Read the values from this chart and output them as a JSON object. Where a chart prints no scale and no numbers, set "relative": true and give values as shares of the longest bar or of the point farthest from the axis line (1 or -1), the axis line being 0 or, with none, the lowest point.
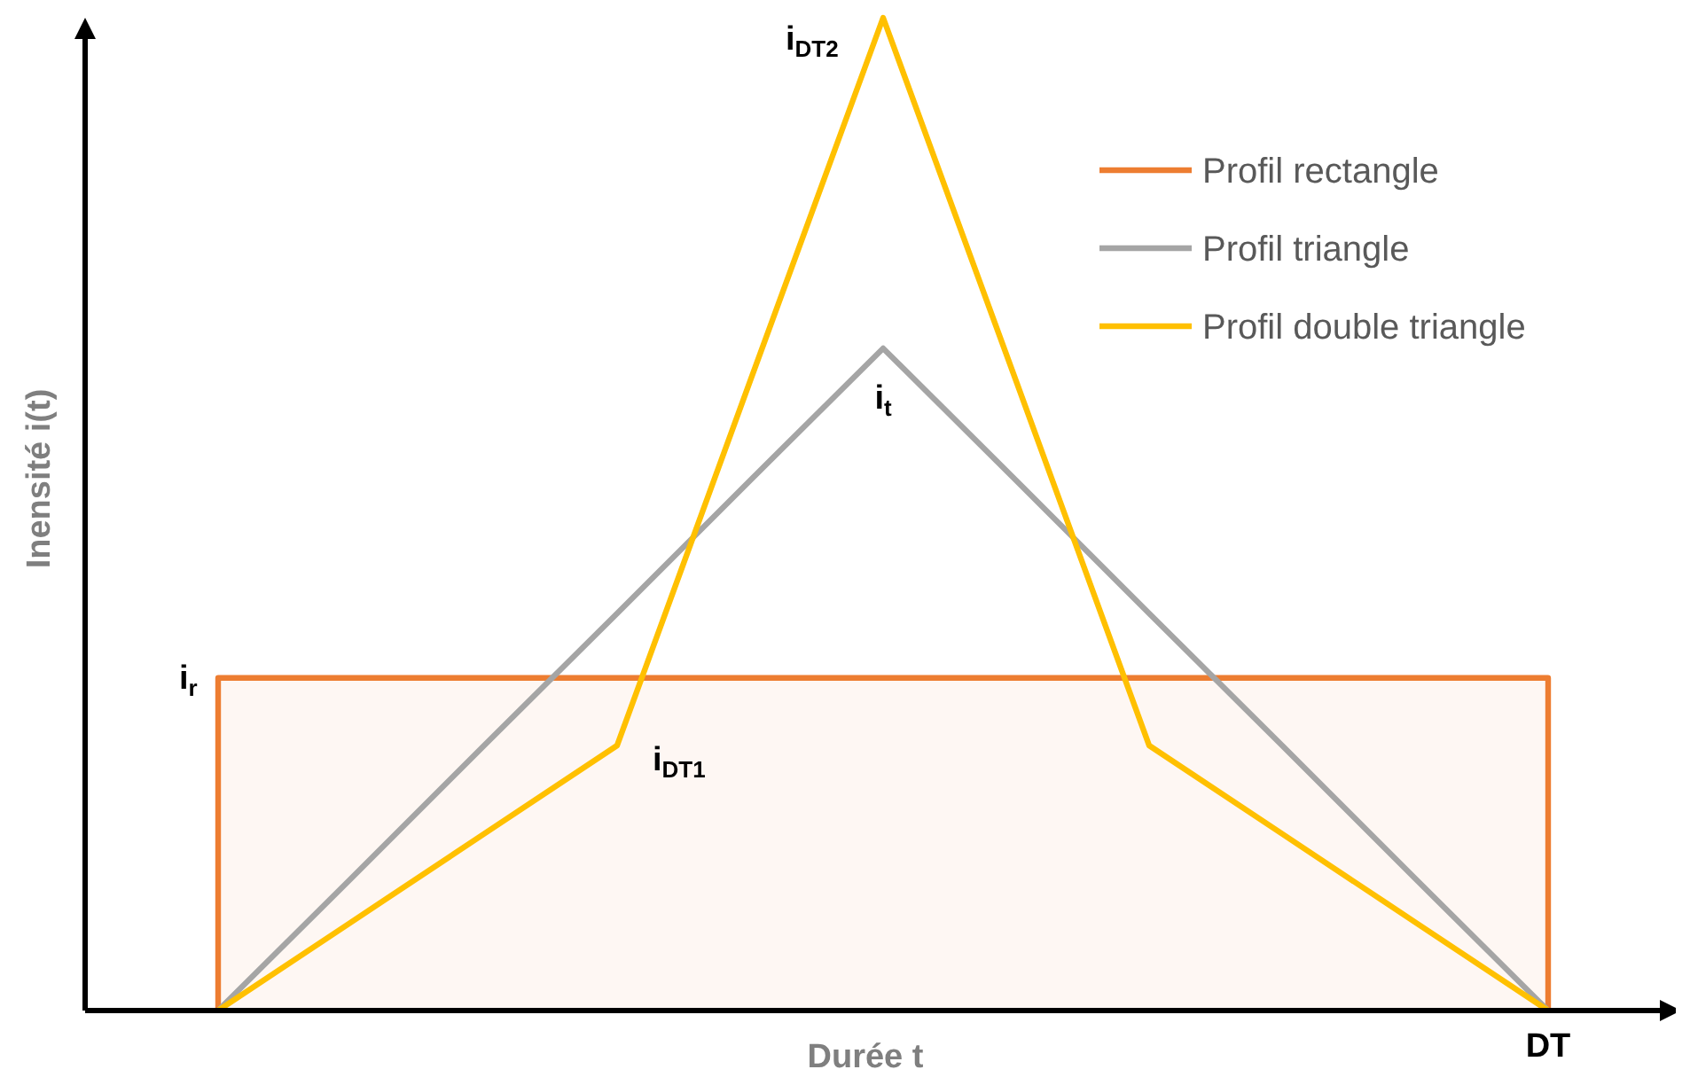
{
  "chart_data": {
    "type": "line",
    "relative": true,
    "xlabel": "Durée t",
    "ylabel": "Inensité i(t)",
    "legend": "top right",
    "line_style": "solid",
    "categories": [
      null,
      null,
      null,
      null,
      null,
      null,
      null,
      null,
      null,
      null,
      null,
      null,
      null
    ],
    "series": [
      {
        "name": "Profil rectangle",
        "type": "area",
        "color": "#ed7d31",
        "values": [
          null,
          0.335,
          0.335,
          0.335,
          0.335,
          0.335,
          0.335,
          0.335,
          0.335,
          0.335,
          0.335,
          0.335,
          null
        ]
      },
      {
        "name": "Profil triangle",
        "color": "#a5a5a5",
        "values": [
          null,
          0,
          0.133,
          0.267,
          0.4,
          0.534,
          0.667,
          0.534,
          0.4,
          0.267,
          0.133,
          0,
          null
        ]
      },
      {
        "name": "Profil double triangle",
        "color": "#ffc000",
        "values": [
          null,
          0,
          0.089,
          0.178,
          0.267,
          0.634,
          1,
          0.634,
          0.267,
          0.178,
          0.089,
          0,
          null
        ]
      }
    ],
    "annotations": [
      "i$_{r}$",
      {
        "text": "i$_{t}$",
        "y": 0.667
      },
      "i$_{DT1}$",
      "i$_{DT2}$",
      "DT"
    ]
  }
}
